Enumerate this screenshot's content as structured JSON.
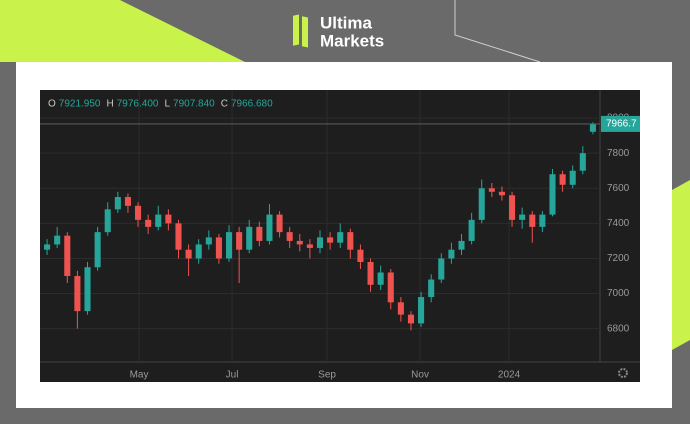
{
  "brand": {
    "line1": "Ultima",
    "line2": "Markets"
  },
  "chart_data": {
    "type": "candlestick",
    "header": [
      {
        "letter": "O",
        "label": "7921.950"
      },
      {
        "letter": "H",
        "label": "7976.400"
      },
      {
        "letter": "L",
        "label": "7907.840"
      },
      {
        "letter": "C",
        "label": "7966.680"
      }
    ],
    "last_price": {
      "value": 7966.68,
      "label": "7966.7"
    },
    "x": [
      0,
      1,
      2,
      3,
      4,
      5,
      6,
      7,
      8,
      9,
      10,
      11,
      12,
      13,
      14,
      15,
      16,
      17,
      18,
      19,
      20,
      21,
      22,
      23,
      24,
      25,
      26,
      27,
      28,
      29,
      30,
      31,
      32,
      33,
      34,
      35,
      36,
      37,
      38,
      39,
      40,
      41,
      42,
      43,
      44,
      45,
      46,
      47,
      48,
      49,
      50,
      51,
      52,
      53,
      54
    ],
    "open": [
      7250,
      7280,
      7330,
      7100,
      6900,
      7150,
      7350,
      7480,
      7550,
      7500,
      7420,
      7380,
      7450,
      7400,
      7250,
      7200,
      7280,
      7320,
      7200,
      7350,
      7250,
      7380,
      7300,
      7450,
      7350,
      7300,
      7280,
      7260,
      7320,
      7290,
      7350,
      7250,
      7180,
      7050,
      7120,
      6950,
      6880,
      6830,
      6980,
      7080,
      7200,
      7250,
      7300,
      7420,
      7600,
      7580,
      7560,
      7420,
      7450,
      7380,
      7450,
      7680,
      7620,
      7700,
      7921.95
    ],
    "high": [
      7310,
      7380,
      7350,
      7130,
      7180,
      7380,
      7520,
      7580,
      7570,
      7520,
      7450,
      7500,
      7480,
      7420,
      7280,
      7310,
      7360,
      7340,
      7390,
      7380,
      7420,
      7410,
      7510,
      7470,
      7380,
      7340,
      7310,
      7360,
      7350,
      7400,
      7370,
      7280,
      7200,
      7160,
      7140,
      6980,
      6900,
      7010,
      7110,
      7230,
      7290,
      7340,
      7460,
      7650,
      7630,
      7610,
      7580,
      7490,
      7470,
      7470,
      7710,
      7700,
      7730,
      7840,
      7976.4
    ],
    "low": [
      7220,
      7260,
      7060,
      6800,
      6880,
      7130,
      7330,
      7460,
      7460,
      7380,
      7340,
      7360,
      7360,
      7200,
      7100,
      7170,
      7250,
      7170,
      7180,
      7060,
      7230,
      7270,
      7280,
      7320,
      7260,
      7240,
      7200,
      7230,
      7250,
      7260,
      7200,
      7140,
      7010,
      7020,
      6910,
      6840,
      6790,
      6810,
      6950,
      7060,
      7170,
      7220,
      7280,
      7400,
      7550,
      7530,
      7380,
      7370,
      7290,
      7350,
      7440,
      7580,
      7600,
      7680,
      7907.84
    ],
    "close": [
      7280,
      7330,
      7100,
      6900,
      7150,
      7350,
      7480,
      7550,
      7500,
      7420,
      7380,
      7450,
      7400,
      7250,
      7200,
      7280,
      7320,
      7200,
      7350,
      7250,
      7380,
      7300,
      7450,
      7350,
      7300,
      7280,
      7260,
      7320,
      7290,
      7350,
      7250,
      7180,
      7050,
      7120,
      6950,
      6880,
      6830,
      6980,
      7080,
      7200,
      7250,
      7300,
      7420,
      7600,
      7580,
      7560,
      7420,
      7450,
      7380,
      7450,
      7680,
      7620,
      7700,
      7800,
      7966.68
    ],
    "up_color": "#26a69a",
    "down_color": "#ef5350",
    "xlim": [
      -0.7,
      54.7
    ],
    "xticks": [
      {
        "value": 9.1,
        "label": "May"
      },
      {
        "value": 18.3,
        "label": "Jul"
      },
      {
        "value": 27.7,
        "label": "Sep"
      },
      {
        "value": 36.9,
        "label": "Nov"
      },
      {
        "value": 45.7,
        "label": "2024"
      }
    ],
    "ylim": [
      6610,
      8160
    ],
    "yticks": [
      6800,
      7000,
      7200,
      7400,
      7600,
      7800,
      8000
    ],
    "grid": true
  }
}
